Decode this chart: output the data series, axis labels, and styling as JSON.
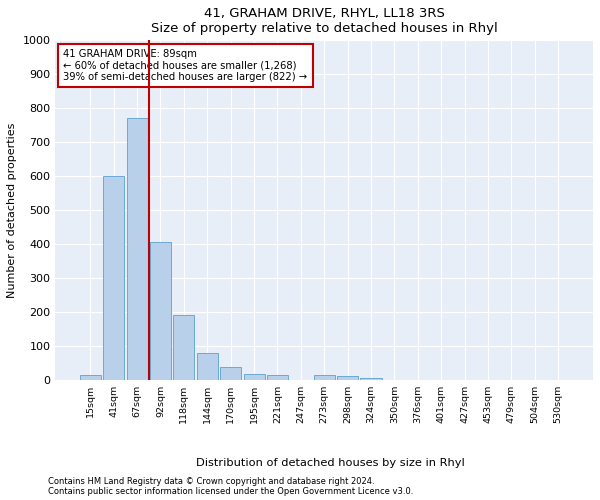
{
  "title": "41, GRAHAM DRIVE, RHYL, LL18 3RS",
  "subtitle": "Size of property relative to detached houses in Rhyl",
  "xlabel_bottom": "Distribution of detached houses by size in Rhyl",
  "ylabel": "Number of detached properties",
  "footer_line1": "Contains HM Land Registry data © Crown copyright and database right 2024.",
  "footer_line2": "Contains public sector information licensed under the Open Government Licence v3.0.",
  "bar_labels": [
    "15sqm",
    "41sqm",
    "67sqm",
    "92sqm",
    "118sqm",
    "144sqm",
    "170sqm",
    "195sqm",
    "221sqm",
    "247sqm",
    "273sqm",
    "298sqm",
    "324sqm",
    "350sqm",
    "376sqm",
    "401sqm",
    "427sqm",
    "453sqm",
    "479sqm",
    "504sqm",
    "530sqm"
  ],
  "bar_values": [
    15,
    600,
    770,
    405,
    190,
    78,
    38,
    18,
    15,
    0,
    14,
    12,
    5,
    0,
    0,
    0,
    0,
    0,
    0,
    0,
    0
  ],
  "bar_color": "#b8d0ea",
  "bar_edge_color": "#6aaad4",
  "ylim": [
    0,
    1000
  ],
  "yticks": [
    0,
    100,
    200,
    300,
    400,
    500,
    600,
    700,
    800,
    900,
    1000
  ],
  "annotation_text_line1": "41 GRAHAM DRIVE: 89sqm",
  "annotation_text_line2": "← 60% of detached houses are smaller (1,268)",
  "annotation_text_line3": "39% of semi-detached houses are larger (822) →",
  "property_color": "#c00000",
  "bg_color": "#e8eef8",
  "grid_color": "#ffffff"
}
